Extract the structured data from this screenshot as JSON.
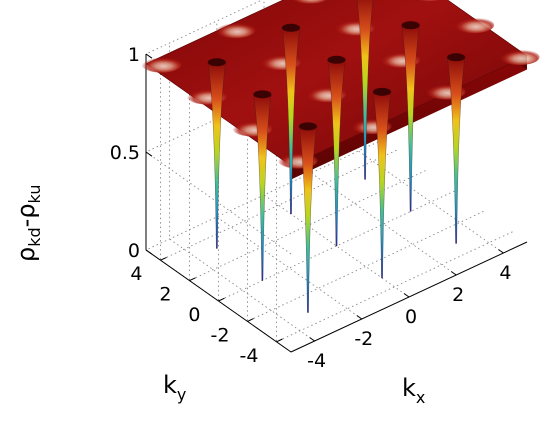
{
  "chart_data": {
    "type": "surface",
    "title": "",
    "xlabel": {
      "base": "k",
      "sub": "x"
    },
    "ylabel": {
      "base": "k",
      "sub": "y"
    },
    "zlabel": {
      "part1": "ρ",
      "sub1": "kd",
      "dash": "-",
      "part2": "ρ",
      "sub2": "ku"
    },
    "xlim": [
      -5,
      5
    ],
    "ylim": [
      -5,
      5
    ],
    "zlim": [
      0,
      1
    ],
    "x_ticks": [
      "-4",
      "-2",
      "0",
      "2",
      "4"
    ],
    "y_ticks": [
      "-4",
      "-2",
      "0",
      "2",
      "4"
    ],
    "z_ticks": [
      "0",
      "0.5",
      "1"
    ],
    "grid": true,
    "colormap": "jet",
    "surface": {
      "plateau_value": 0.95,
      "minimum_value": 0,
      "dip_locations_x": [
        -3.14,
        0,
        3.14
      ],
      "dip_locations_y": [
        -3.14,
        0,
        3.14
      ]
    }
  }
}
